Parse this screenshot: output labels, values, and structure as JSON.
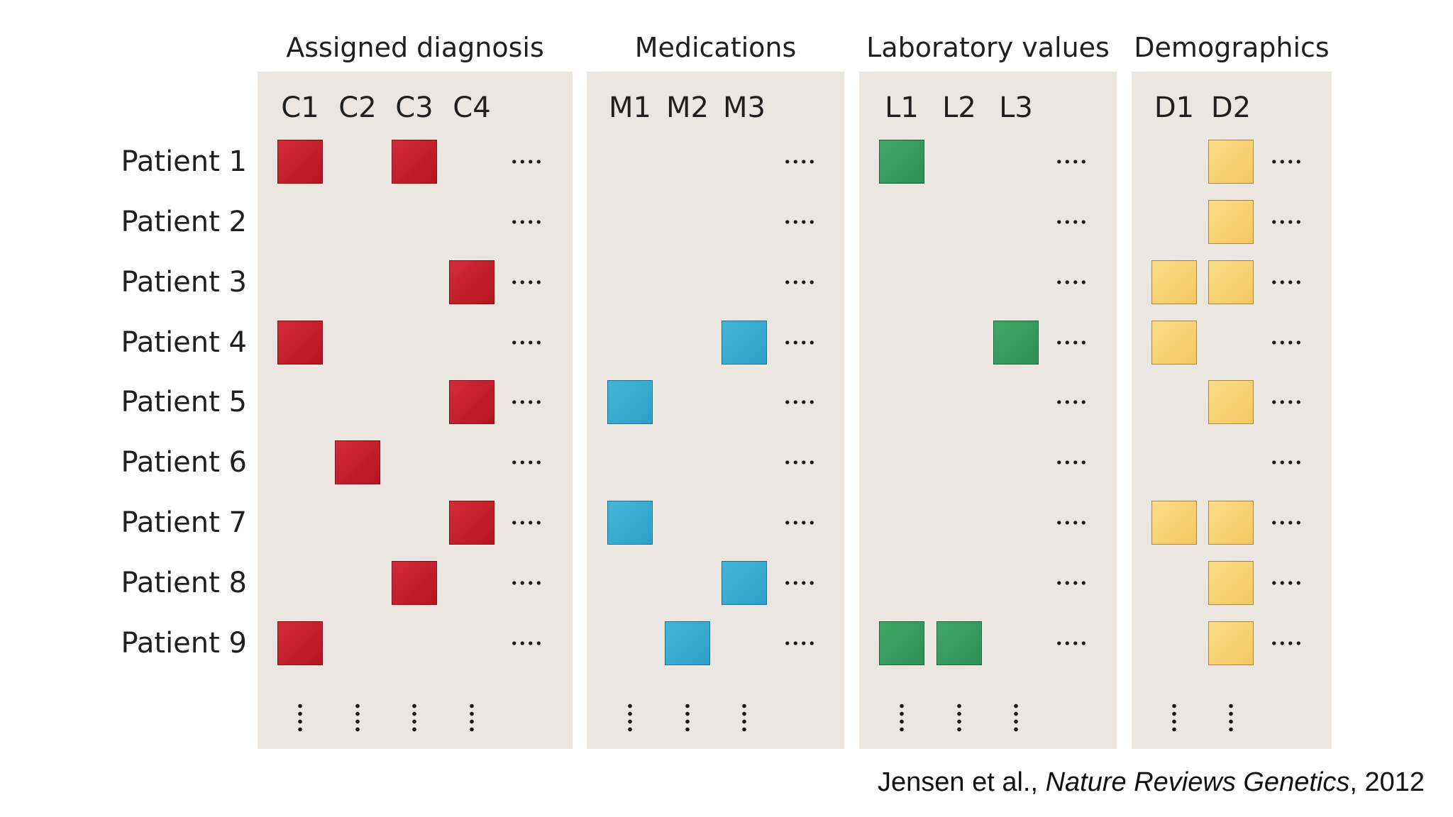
{
  "groups": [
    {
      "key": "diagnosis",
      "title": "Assigned diagnosis",
      "columns": [
        "C1",
        "C2",
        "C3",
        "C4"
      ]
    },
    {
      "key": "medication",
      "title": "Medications",
      "columns": [
        "M1",
        "M2",
        "M3"
      ]
    },
    {
      "key": "lab",
      "title": "Laboratory values",
      "columns": [
        "L1",
        "L2",
        "L3"
      ]
    },
    {
      "key": "demo",
      "title": "Demographics",
      "columns": [
        "D1",
        "D2"
      ]
    }
  ],
  "patients": [
    {
      "label": "Patient 1",
      "cells": {
        "diagnosis": [
          "C1",
          "C3"
        ],
        "medication": [],
        "lab": [
          "L1"
        ],
        "demo": [
          "D2"
        ]
      }
    },
    {
      "label": "Patient 2",
      "cells": {
        "diagnosis": [],
        "medication": [],
        "lab": [],
        "demo": [
          "D2"
        ]
      }
    },
    {
      "label": "Patient 3",
      "cells": {
        "diagnosis": [
          "C4"
        ],
        "medication": [],
        "lab": [],
        "demo": [
          "D1",
          "D2"
        ]
      }
    },
    {
      "label": "Patient 4",
      "cells": {
        "diagnosis": [
          "C1"
        ],
        "medication": [
          "M3"
        ],
        "lab": [
          "L3"
        ],
        "demo": [
          "D1"
        ]
      }
    },
    {
      "label": "Patient 5",
      "cells": {
        "diagnosis": [
          "C4"
        ],
        "medication": [
          "M1"
        ],
        "lab": [],
        "demo": [
          "D2"
        ]
      }
    },
    {
      "label": "Patient 6",
      "cells": {
        "diagnosis": [
          "C2"
        ],
        "medication": [],
        "lab": [],
        "demo": []
      }
    },
    {
      "label": "Patient 7",
      "cells": {
        "diagnosis": [
          "C4"
        ],
        "medication": [
          "M1"
        ],
        "lab": [],
        "demo": [
          "D1",
          "D2"
        ]
      }
    },
    {
      "label": "Patient 8",
      "cells": {
        "diagnosis": [
          "C3"
        ],
        "medication": [
          "M3"
        ],
        "lab": [],
        "demo": [
          "D2"
        ]
      }
    },
    {
      "label": "Patient 9",
      "cells": {
        "diagnosis": [
          "C1"
        ],
        "medication": [
          "M2"
        ],
        "lab": [
          "L1",
          "L2"
        ],
        "demo": [
          "D2"
        ]
      }
    }
  ],
  "colors": {
    "diagnosis": "#c41e2b",
    "medication": "#3aaad2",
    "lab": "#359a5e",
    "demo": "#f9d274",
    "panel": "#ece6e1"
  },
  "citation": {
    "authors": "Jensen et al., ",
    "journal": "Nature Reviews Genetics",
    "year": ", 2012"
  }
}
